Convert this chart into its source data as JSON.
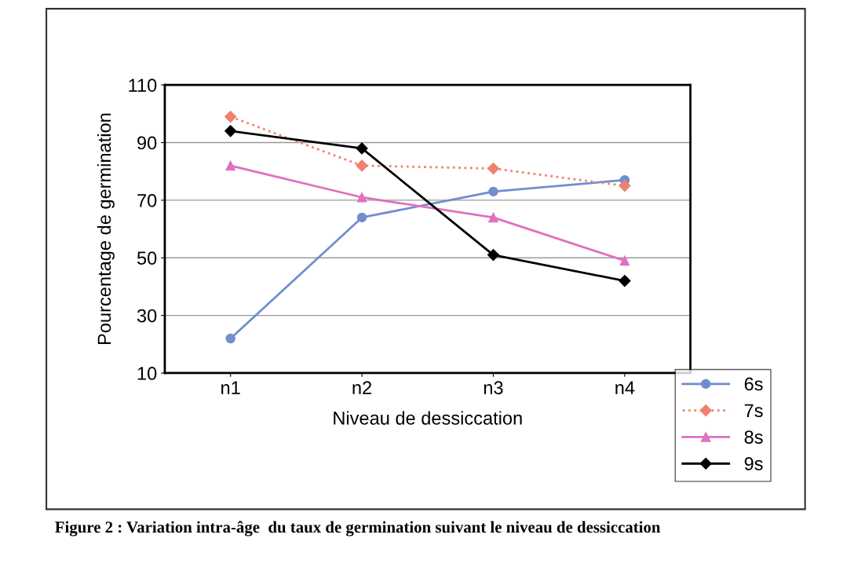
{
  "chart_data": {
    "type": "line",
    "xlabel": "Niveau de dessiccation",
    "ylabel": "Pourcentage de germination",
    "categories": [
      "n1",
      "n2",
      "n3",
      "n4"
    ],
    "ylim": [
      10,
      110
    ],
    "yticks": [
      10,
      30,
      50,
      70,
      90,
      110
    ],
    "grid": "y",
    "legend": "right",
    "annotations": [
      "Figure 2 : Variation intra-âge  du taux de germination suivant le niveau de dessiccation"
    ],
    "series": [
      {
        "name": "6s",
        "color": "#6f8fcf",
        "marker": "circle",
        "line_style": "solid",
        "values": [
          22,
          64,
          73,
          77
        ]
      },
      {
        "name": "7s",
        "color": "#f08070",
        "marker": "diamond",
        "line_style": "dotted",
        "values": [
          99,
          82,
          81,
          75
        ]
      },
      {
        "name": "8s",
        "color": "#e070c0",
        "marker": "triangle",
        "line_style": "solid",
        "values": [
          82,
          71,
          64,
          49
        ]
      },
      {
        "name": "9s",
        "color": "#000000",
        "marker": "diamond",
        "line_style": "solid",
        "values": [
          94,
          88,
          51,
          42
        ]
      }
    ]
  }
}
